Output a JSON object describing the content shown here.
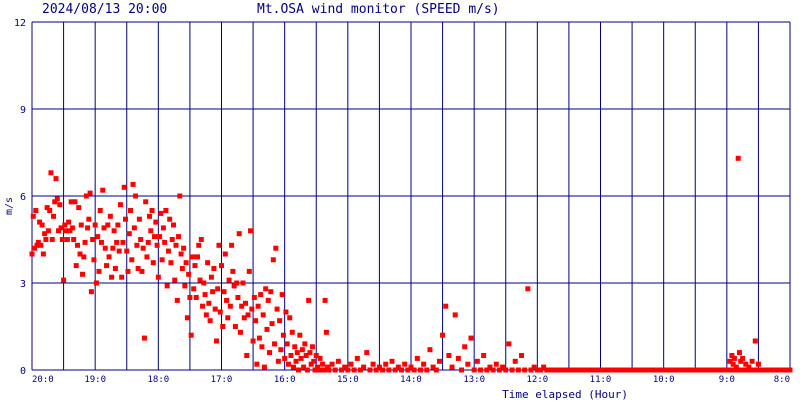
{
  "header": {
    "timestamp": "2024/08/13 20:00",
    "title": "Mt.OSA wind monitor (SPEED m/s)"
  },
  "colors": {
    "grid": "#00007f",
    "text": "#00007f",
    "points": "#ff0000",
    "background": "#ffffff"
  },
  "chart_data": {
    "type": "scatter",
    "title": "Mt.OSA wind monitor (SPEED m/s)",
    "xlabel": "Time elapsed (Hour)",
    "ylabel": "m/s",
    "x_ticks": [
      "20:0",
      "19:0",
      "18:0",
      "17:0",
      "16:0",
      "15:0",
      "14:0",
      "13:0",
      "12:0",
      "11:0",
      "10:0",
      "9:0",
      "8:0"
    ],
    "y_ticks": [
      0,
      3,
      6,
      9,
      12
    ],
    "x_range_hours_elapsed": [
      0,
      12
    ],
    "ylim": [
      0,
      12
    ],
    "grid": true,
    "points": [
      [
        0.0,
        4.0
      ],
      [
        0.02,
        5.3
      ],
      [
        0.04,
        4.2
      ],
      [
        0.06,
        5.5
      ],
      [
        0.08,
        4.3
      ],
      [
        0.1,
        4.4
      ],
      [
        0.12,
        5.1
      ],
      [
        0.14,
        4.3
      ],
      [
        0.16,
        5.0
      ],
      [
        0.18,
        4.0
      ],
      [
        0.2,
        4.7
      ],
      [
        0.22,
        4.5
      ],
      [
        0.24,
        5.6
      ],
      [
        0.26,
        4.8
      ],
      [
        0.28,
        5.5
      ],
      [
        0.3,
        6.8
      ],
      [
        0.32,
        4.5
      ],
      [
        0.34,
        5.3
      ],
      [
        0.36,
        5.8
      ],
      [
        0.38,
        6.6
      ],
      [
        0.4,
        5.9
      ],
      [
        0.42,
        4.8
      ],
      [
        0.44,
        5.7
      ],
      [
        0.46,
        4.9
      ],
      [
        0.48,
        4.5
      ],
      [
        0.5,
        3.1
      ],
      [
        0.52,
        5.0
      ],
      [
        0.54,
        4.8
      ],
      [
        0.56,
        4.5
      ],
      [
        0.58,
        5.1
      ],
      [
        0.6,
        4.8
      ],
      [
        0.62,
        5.8
      ],
      [
        0.64,
        4.9
      ],
      [
        0.66,
        4.5
      ],
      [
        0.68,
        5.8
      ],
      [
        0.7,
        3.6
      ],
      [
        0.72,
        4.3
      ],
      [
        0.74,
        5.6
      ],
      [
        0.76,
        4.0
      ],
      [
        0.78,
        5.0
      ],
      [
        0.8,
        3.3
      ],
      [
        0.82,
        3.9
      ],
      [
        0.84,
        4.4
      ],
      [
        0.86,
        6.0
      ],
      [
        0.88,
        4.9
      ],
      [
        0.9,
        5.2
      ],
      [
        0.92,
        6.1
      ],
      [
        0.94,
        2.7
      ],
      [
        0.96,
        4.5
      ],
      [
        0.98,
        3.8
      ],
      [
        1.0,
        5.0
      ],
      [
        1.02,
        3.0
      ],
      [
        1.04,
        4.6
      ],
      [
        1.06,
        3.4
      ],
      [
        1.08,
        5.5
      ],
      [
        1.1,
        4.4
      ],
      [
        1.12,
        6.2
      ],
      [
        1.14,
        4.9
      ],
      [
        1.16,
        4.2
      ],
      [
        1.18,
        3.6
      ],
      [
        1.2,
        5.0
      ],
      [
        1.22,
        3.9
      ],
      [
        1.24,
        5.3
      ],
      [
        1.26,
        3.2
      ],
      [
        1.28,
        4.2
      ],
      [
        1.3,
        4.8
      ],
      [
        1.32,
        3.5
      ],
      [
        1.34,
        4.4
      ],
      [
        1.36,
        5.0
      ],
      [
        1.38,
        4.1
      ],
      [
        1.4,
        5.7
      ],
      [
        1.42,
        3.2
      ],
      [
        1.44,
        4.4
      ],
      [
        1.46,
        6.3
      ],
      [
        1.48,
        5.2
      ],
      [
        1.5,
        4.1
      ],
      [
        1.52,
        3.4
      ],
      [
        1.54,
        4.7
      ],
      [
        1.56,
        5.5
      ],
      [
        1.58,
        3.8
      ],
      [
        1.6,
        6.4
      ],
      [
        1.62,
        4.9
      ],
      [
        1.64,
        6.0
      ],
      [
        1.66,
        4.3
      ],
      [
        1.68,
        3.5
      ],
      [
        1.7,
        5.2
      ],
      [
        1.72,
        4.5
      ],
      [
        1.74,
        3.4
      ],
      [
        1.76,
        4.2
      ],
      [
        1.78,
        1.1
      ],
      [
        1.8,
        5.8
      ],
      [
        1.82,
        3.9
      ],
      [
        1.84,
        4.4
      ],
      [
        1.86,
        5.3
      ],
      [
        1.88,
        4.8
      ],
      [
        1.9,
        5.5
      ],
      [
        1.92,
        3.7
      ],
      [
        1.94,
        4.6
      ],
      [
        1.96,
        5.1
      ],
      [
        1.98,
        4.3
      ],
      [
        2.0,
        3.2
      ],
      [
        2.02,
        4.6
      ],
      [
        2.04,
        5.4
      ],
      [
        2.06,
        3.8
      ],
      [
        2.08,
        4.9
      ],
      [
        2.1,
        4.4
      ],
      [
        2.12,
        5.5
      ],
      [
        2.14,
        2.9
      ],
      [
        2.16,
        4.1
      ],
      [
        2.18,
        5.2
      ],
      [
        2.2,
        3.7
      ],
      [
        2.22,
        4.5
      ],
      [
        2.24,
        5.0
      ],
      [
        2.26,
        3.1
      ],
      [
        2.28,
        4.3
      ],
      [
        2.3,
        2.4
      ],
      [
        2.32,
        4.6
      ],
      [
        2.34,
        6.0
      ],
      [
        2.36,
        4.0
      ],
      [
        2.38,
        3.5
      ],
      [
        2.4,
        4.2
      ],
      [
        2.42,
        2.9
      ],
      [
        2.44,
        3.7
      ],
      [
        2.46,
        1.8
      ],
      [
        2.48,
        3.3
      ],
      [
        2.5,
        2.5
      ],
      [
        2.52,
        1.2
      ],
      [
        2.54,
        3.9
      ],
      [
        2.56,
        2.8
      ],
      [
        2.58,
        3.6
      ],
      [
        2.6,
        2.5
      ],
      [
        2.62,
        3.9
      ],
      [
        2.64,
        4.3
      ],
      [
        2.66,
        3.1
      ],
      [
        2.68,
        4.5
      ],
      [
        2.7,
        2.2
      ],
      [
        2.72,
        3.0
      ],
      [
        2.74,
        2.6
      ],
      [
        2.76,
        1.9
      ],
      [
        2.78,
        3.7
      ],
      [
        2.8,
        2.3
      ],
      [
        2.82,
        1.7
      ],
      [
        2.84,
        3.2
      ],
      [
        2.86,
        2.7
      ],
      [
        2.88,
        3.5
      ],
      [
        2.9,
        2.1
      ],
      [
        2.92,
        1.0
      ],
      [
        2.94,
        2.8
      ],
      [
        2.96,
        4.3
      ],
      [
        2.98,
        2.0
      ],
      [
        3.0,
        3.6
      ],
      [
        3.02,
        1.5
      ],
      [
        3.04,
        2.7
      ],
      [
        3.06,
        4.0
      ],
      [
        3.08,
        2.4
      ],
      [
        3.1,
        1.8
      ],
      [
        3.12,
        3.1
      ],
      [
        3.14,
        2.2
      ],
      [
        3.16,
        4.3
      ],
      [
        3.18,
        3.4
      ],
      [
        3.2,
        2.9
      ],
      [
        3.22,
        1.5
      ],
      [
        3.24,
        3.0
      ],
      [
        3.26,
        2.5
      ],
      [
        3.28,
        4.7
      ],
      [
        3.3,
        1.3
      ],
      [
        3.32,
        2.2
      ],
      [
        3.34,
        3.0
      ],
      [
        3.36,
        1.8
      ],
      [
        3.38,
        2.3
      ],
      [
        3.4,
        0.5
      ],
      [
        3.42,
        1.9
      ],
      [
        3.44,
        3.4
      ],
      [
        3.46,
        4.8
      ],
      [
        3.48,
        2.1
      ],
      [
        3.5,
        1.0
      ],
      [
        3.52,
        2.5
      ],
      [
        3.54,
        1.7
      ],
      [
        3.56,
        0.2
      ],
      [
        3.58,
        2.2
      ],
      [
        3.6,
        1.1
      ],
      [
        3.62,
        2.6
      ],
      [
        3.64,
        0.8
      ],
      [
        3.66,
        1.9
      ],
      [
        3.68,
        0.1
      ],
      [
        3.7,
        2.8
      ],
      [
        3.72,
        1.4
      ],
      [
        3.74,
        2.4
      ],
      [
        3.76,
        0.6
      ],
      [
        3.78,
        2.7
      ],
      [
        3.8,
        1.6
      ],
      [
        3.82,
        3.8
      ],
      [
        3.84,
        0.9
      ],
      [
        3.86,
        4.2
      ],
      [
        3.88,
        2.1
      ],
      [
        3.9,
        0.3
      ],
      [
        3.92,
        1.7
      ],
      [
        3.94,
        0.7
      ],
      [
        3.96,
        2.6
      ],
      [
        3.98,
        1.2
      ],
      [
        4.0,
        0.4
      ],
      [
        4.02,
        2.0
      ],
      [
        4.04,
        0.9
      ],
      [
        4.06,
        0.2
      ],
      [
        4.08,
        1.8
      ],
      [
        4.1,
        0.5
      ],
      [
        4.12,
        1.3
      ],
      [
        4.14,
        0.1
      ],
      [
        4.16,
        0.8
      ],
      [
        4.18,
        0.3
      ],
      [
        4.2,
        0.6
      ],
      [
        4.22,
        0.0
      ],
      [
        4.24,
        1.2
      ],
      [
        4.26,
        0.4
      ],
      [
        4.28,
        0.7
      ],
      [
        4.3,
        0.1
      ],
      [
        4.32,
        0.9
      ],
      [
        4.34,
        0.5
      ],
      [
        4.36,
        0.0
      ],
      [
        4.38,
        2.4
      ],
      [
        4.4,
        0.6
      ],
      [
        4.42,
        0.2
      ],
      [
        4.44,
        0.8
      ],
      [
        4.46,
        0.3
      ],
      [
        4.48,
        0.0
      ],
      [
        4.5,
        0.5
      ],
      [
        4.52,
        0.1
      ],
      [
        4.54,
        0.0
      ],
      [
        4.56,
        0.4
      ],
      [
        4.58,
        0.0
      ],
      [
        4.6,
        0.2
      ],
      [
        4.62,
        0.0
      ],
      [
        4.64,
        2.4
      ],
      [
        4.66,
        1.3
      ],
      [
        4.68,
        0.1
      ],
      [
        4.7,
        0.0
      ],
      [
        4.75,
        0.2
      ],
      [
        4.8,
        0.0
      ],
      [
        4.85,
        0.3
      ],
      [
        4.9,
        0.0
      ],
      [
        4.95,
        0.1
      ],
      [
        5.0,
        0.0
      ],
      [
        5.05,
        0.2
      ],
      [
        5.1,
        0.0
      ],
      [
        5.15,
        0.4
      ],
      [
        5.2,
        0.0
      ],
      [
        5.25,
        0.1
      ],
      [
        5.3,
        0.6
      ],
      [
        5.35,
        0.0
      ],
      [
        5.4,
        0.2
      ],
      [
        5.45,
        0.0
      ],
      [
        5.5,
        0.1
      ],
      [
        5.55,
        0.0
      ],
      [
        5.6,
        0.2
      ],
      [
        5.65,
        0.0
      ],
      [
        5.7,
        0.3
      ],
      [
        5.75,
        0.0
      ],
      [
        5.8,
        0.1
      ],
      [
        5.85,
        0.0
      ],
      [
        5.9,
        0.2
      ],
      [
        5.95,
        0.0
      ],
      [
        6.0,
        0.1
      ],
      [
        6.05,
        0.0
      ],
      [
        6.1,
        0.4
      ],
      [
        6.15,
        0.0
      ],
      [
        6.2,
        0.2
      ],
      [
        6.25,
        0.0
      ],
      [
        6.3,
        0.7
      ],
      [
        6.35,
        0.1
      ],
      [
        6.4,
        0.0
      ],
      [
        6.45,
        0.3
      ],
      [
        6.5,
        1.2
      ],
      [
        6.55,
        2.2
      ],
      [
        6.6,
        0.5
      ],
      [
        6.65,
        0.1
      ],
      [
        6.7,
        1.9
      ],
      [
        6.75,
        0.4
      ],
      [
        6.8,
        0.0
      ],
      [
        6.85,
        0.8
      ],
      [
        6.9,
        0.2
      ],
      [
        6.95,
        1.1
      ],
      [
        7.0,
        0.0
      ],
      [
        7.05,
        0.3
      ],
      [
        7.1,
        0.0
      ],
      [
        7.15,
        0.5
      ],
      [
        7.2,
        0.0
      ],
      [
        7.25,
        0.1
      ],
      [
        7.3,
        0.0
      ],
      [
        7.35,
        0.2
      ],
      [
        7.4,
        0.0
      ],
      [
        7.45,
        0.1
      ],
      [
        7.5,
        0.0
      ],
      [
        7.55,
        0.9
      ],
      [
        7.6,
        0.0
      ],
      [
        7.65,
        0.3
      ],
      [
        7.7,
        0.0
      ],
      [
        7.75,
        0.5
      ],
      [
        7.8,
        0.0
      ],
      [
        7.85,
        2.8
      ],
      [
        7.9,
        0.0
      ],
      [
        7.95,
        0.1
      ],
      [
        8.0,
        0.0
      ],
      [
        8.05,
        0.0
      ],
      [
        8.1,
        0.1
      ],
      [
        8.15,
        0.0
      ],
      [
        8.2,
        0.0
      ],
      [
        8.25,
        0.0
      ],
      [
        8.3,
        0.0
      ],
      [
        8.35,
        0.0
      ],
      [
        8.4,
        0.0
      ],
      [
        8.45,
        0.0
      ],
      [
        8.5,
        0.0
      ],
      [
        8.55,
        0.0
      ],
      [
        8.6,
        0.0
      ],
      [
        8.65,
        0.0
      ],
      [
        8.7,
        0.0
      ],
      [
        8.75,
        0.0
      ],
      [
        8.8,
        0.0
      ],
      [
        8.85,
        0.0
      ],
      [
        8.9,
        0.0
      ],
      [
        8.95,
        0.0
      ],
      [
        9.0,
        0.0
      ],
      [
        9.05,
        0.0
      ],
      [
        9.1,
        0.0
      ],
      [
        9.15,
        0.0
      ],
      [
        9.2,
        0.0
      ],
      [
        9.25,
        0.0
      ],
      [
        9.3,
        0.0
      ],
      [
        9.35,
        0.0
      ],
      [
        9.4,
        0.0
      ],
      [
        9.45,
        0.0
      ],
      [
        9.5,
        0.0
      ],
      [
        9.55,
        0.0
      ],
      [
        9.6,
        0.0
      ],
      [
        9.65,
        0.0
      ],
      [
        9.7,
        0.0
      ],
      [
        9.75,
        0.0
      ],
      [
        9.8,
        0.0
      ],
      [
        9.85,
        0.0
      ],
      [
        9.9,
        0.0
      ],
      [
        9.95,
        0.0
      ],
      [
        10.0,
        0.0
      ],
      [
        10.05,
        0.0
      ],
      [
        10.1,
        0.0
      ],
      [
        10.15,
        0.0
      ],
      [
        10.2,
        0.0
      ],
      [
        10.25,
        0.0
      ],
      [
        10.3,
        0.0
      ],
      [
        10.35,
        0.0
      ],
      [
        10.4,
        0.0
      ],
      [
        10.45,
        0.0
      ],
      [
        10.5,
        0.0
      ],
      [
        10.55,
        0.0
      ],
      [
        10.6,
        0.0
      ],
      [
        10.65,
        0.0
      ],
      [
        10.7,
        0.0
      ],
      [
        10.75,
        0.0
      ],
      [
        10.8,
        0.0
      ],
      [
        10.85,
        0.0
      ],
      [
        10.9,
        0.0
      ],
      [
        10.95,
        0.0
      ],
      [
        11.0,
        0.0
      ],
      [
        11.05,
        0.0
      ],
      [
        11.1,
        0.0
      ],
      [
        11.15,
        0.0
      ],
      [
        11.2,
        0.0
      ],
      [
        11.25,
        0.0
      ],
      [
        11.3,
        0.0
      ],
      [
        11.35,
        0.0
      ],
      [
        11.4,
        0.0
      ],
      [
        11.45,
        0.0
      ],
      [
        11.5,
        0.0
      ],
      [
        11.55,
        0.0
      ],
      [
        11.6,
        0.0
      ],
      [
        11.65,
        0.0
      ],
      [
        11.7,
        0.0
      ],
      [
        11.75,
        0.0
      ],
      [
        11.8,
        0.0
      ],
      [
        11.85,
        0.0
      ],
      [
        11.9,
        0.0
      ],
      [
        11.95,
        0.0
      ],
      [
        12.0,
        0.0
      ],
      [
        11.05,
        0.3
      ],
      [
        11.08,
        0.5
      ],
      [
        11.1,
        0.2
      ],
      [
        11.12,
        0.4
      ],
      [
        11.15,
        0.1
      ],
      [
        11.18,
        7.3
      ],
      [
        11.2,
        0.6
      ],
      [
        11.22,
        0.3
      ],
      [
        11.25,
        0.4
      ],
      [
        11.3,
        0.2
      ],
      [
        11.35,
        0.1
      ],
      [
        11.4,
        0.3
      ],
      [
        11.45,
        1.0
      ],
      [
        11.5,
        0.2
      ]
    ]
  }
}
